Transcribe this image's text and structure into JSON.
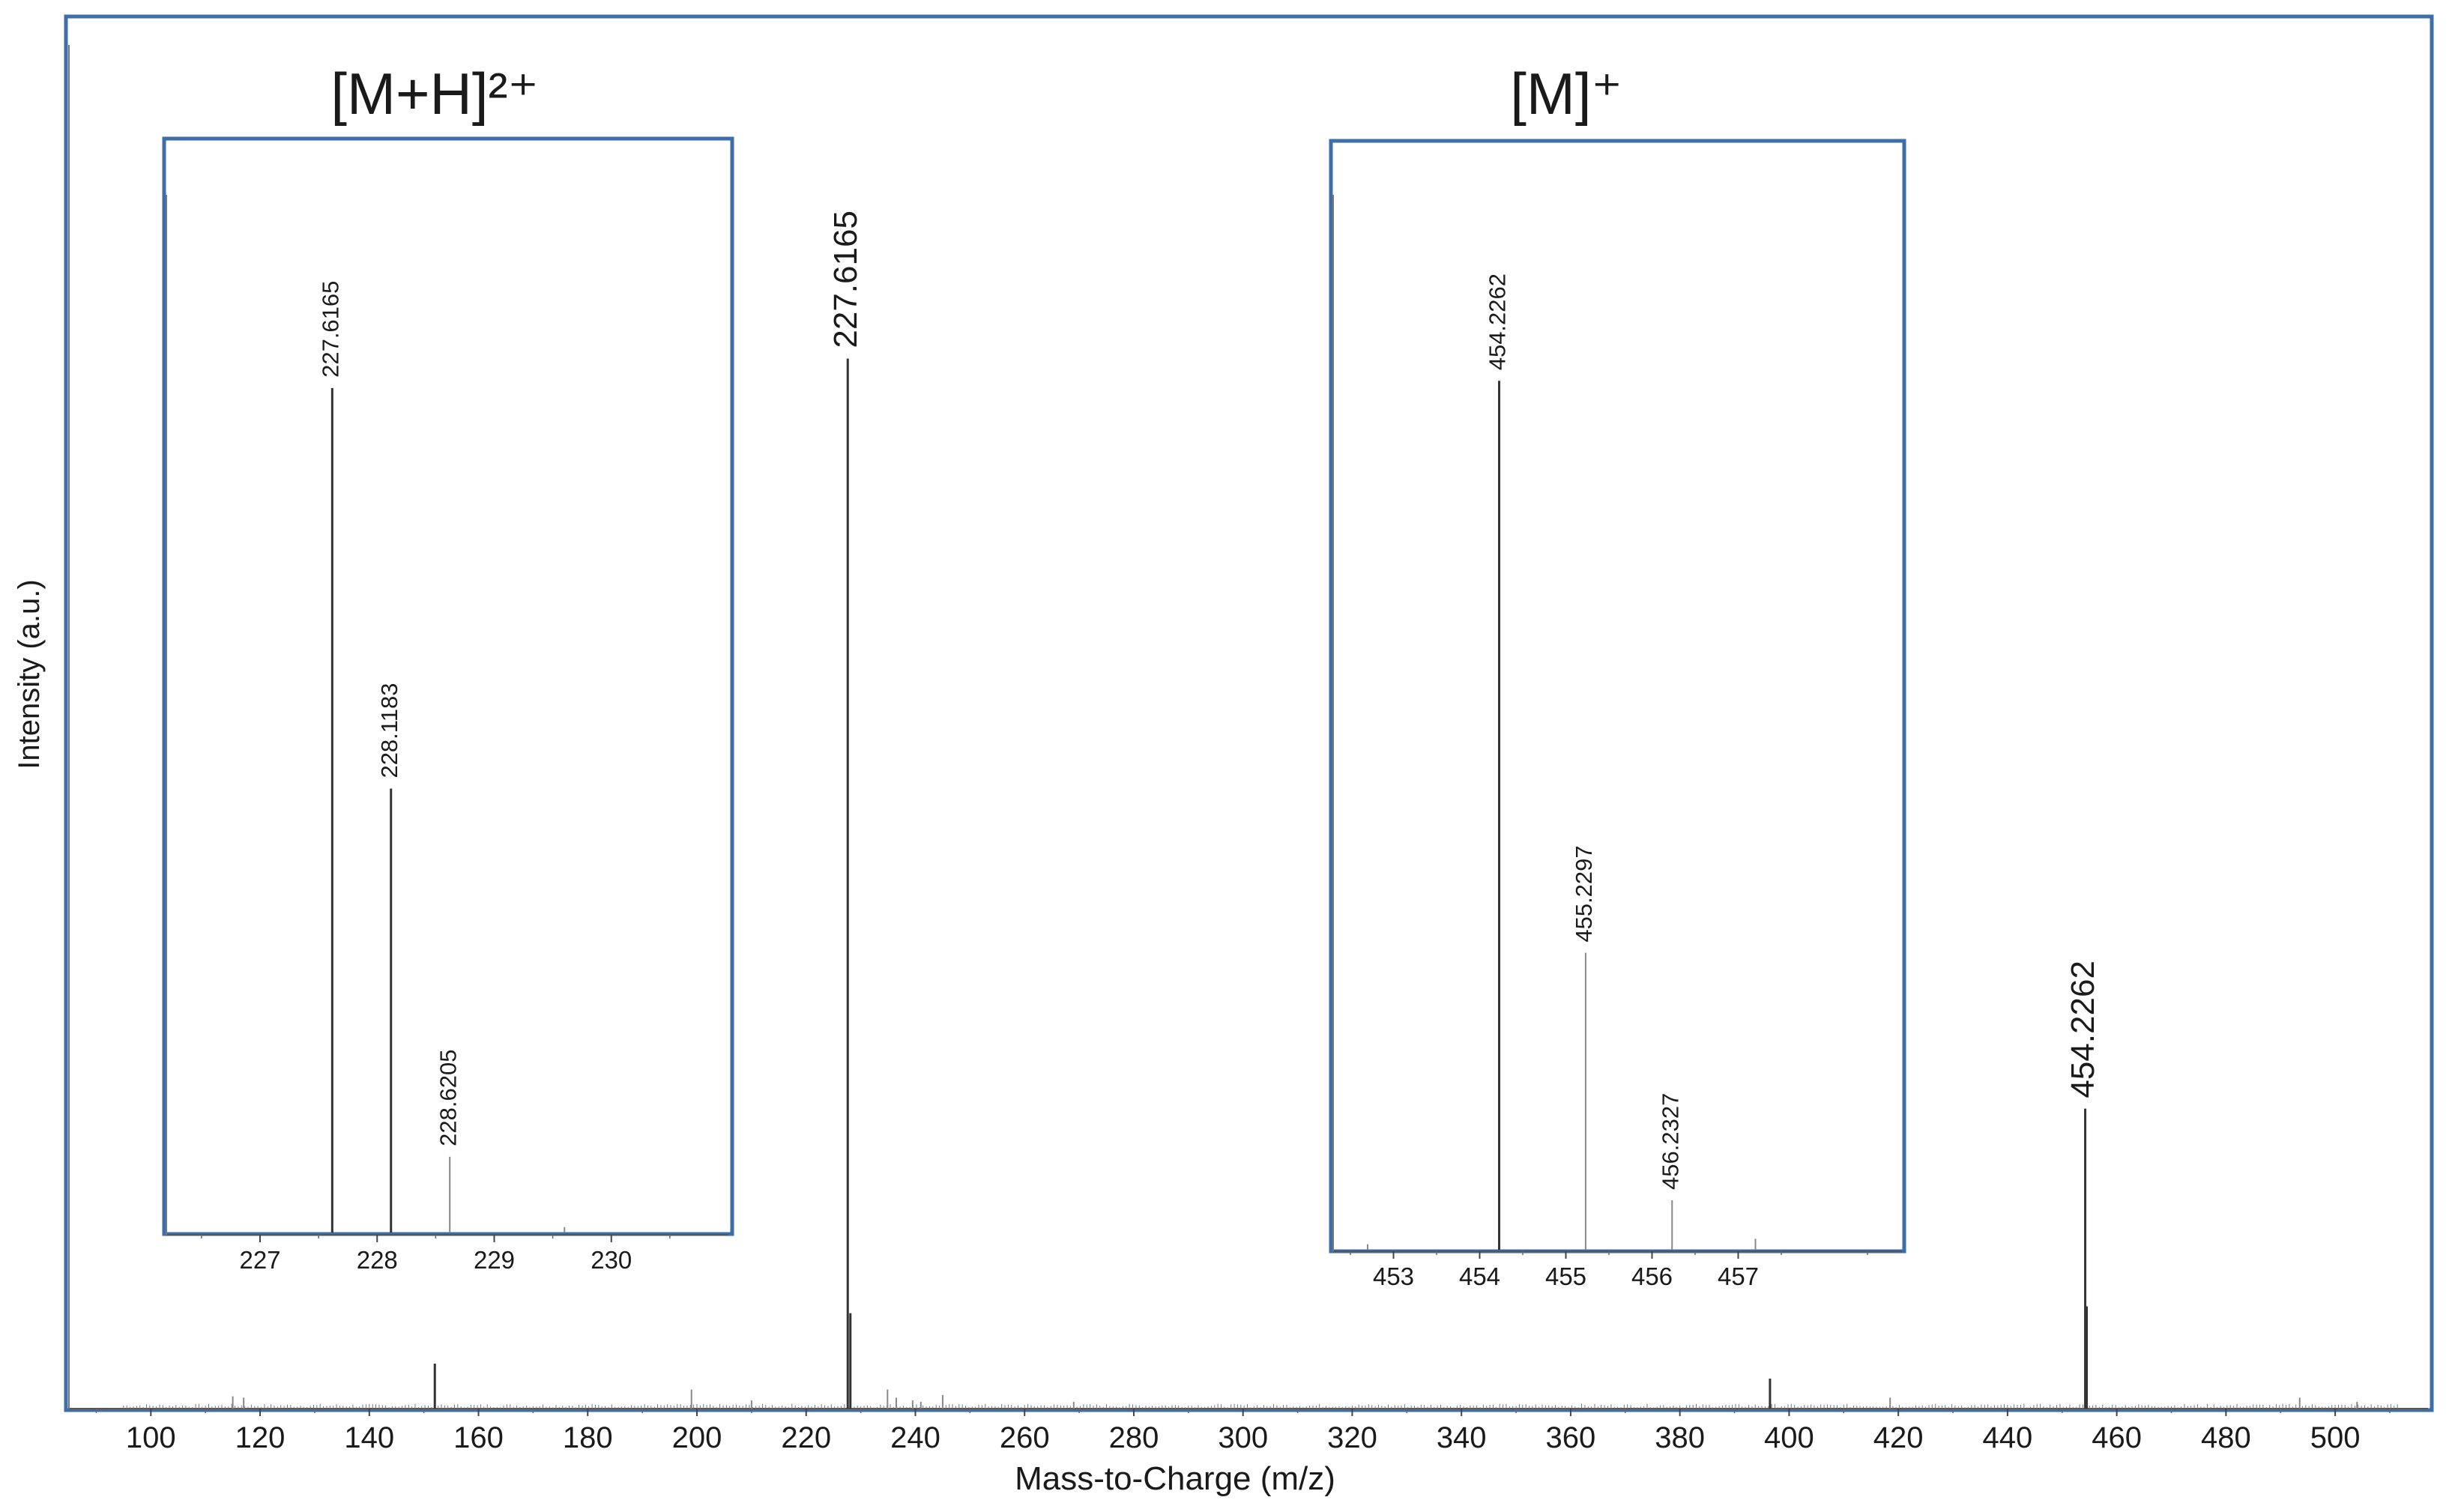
{
  "chart_data": [
    {
      "type": "bar",
      "xlabel": "Mass-to-Charge (m/z)",
      "ylabel": "Intensity (a.u.)",
      "xlim": [
        85,
        517
      ],
      "ylim": [
        0,
        100
      ],
      "xticks": [
        "100",
        "120",
        "140",
        "160",
        "180",
        "200",
        "220",
        "240",
        "260",
        "280",
        "300",
        "320",
        "340",
        "360",
        "380",
        "400",
        "420",
        "440",
        "460",
        "480",
        "500"
      ],
      "peaks": [
        {
          "x": 227.6165,
          "y": 77,
          "label": "227.6165"
        },
        {
          "x": 228.1,
          "y": 7,
          "label": ""
        },
        {
          "x": 454.2262,
          "y": 22,
          "label": "454.2262"
        },
        {
          "x": 454.5,
          "y": 7.5,
          "label": ""
        },
        {
          "x": 152.0,
          "y": 3.3,
          "label": ""
        },
        {
          "x": 396.5,
          "y": 2.2,
          "label": ""
        },
        {
          "x": 234.9,
          "y": 1.4,
          "label": ""
        },
        {
          "x": 199.0,
          "y": 1.4,
          "label": ""
        },
        {
          "x": 245.0,
          "y": 1.0,
          "label": ""
        },
        {
          "x": 115.0,
          "y": 0.9,
          "label": ""
        },
        {
          "x": 117.0,
          "y": 0.8,
          "label": ""
        },
        {
          "x": 210.0,
          "y": 0.6,
          "label": ""
        },
        {
          "x": 418.5,
          "y": 0.8,
          "label": ""
        },
        {
          "x": 493.5,
          "y": 0.8,
          "label": ""
        },
        {
          "x": 269.0,
          "y": 0.5,
          "label": ""
        },
        {
          "x": 236.5,
          "y": 0.8,
          "label": ""
        },
        {
          "x": 239.5,
          "y": 0.6,
          "label": ""
        },
        {
          "x": 241.0,
          "y": 0.5,
          "label": ""
        },
        {
          "x": 504.0,
          "y": 0.5,
          "label": ""
        }
      ]
    },
    {
      "type": "bar",
      "title": "[M+H]²⁺",
      "xlim": [
        226.2,
        231.0
      ],
      "ylim": [
        0,
        100
      ],
      "xticks": [
        "227",
        "228",
        "229",
        "230"
      ],
      "peaks": [
        {
          "x": 227.6165,
          "y": 78,
          "label": "227.6165"
        },
        {
          "x": 228.1183,
          "y": 41,
          "label": "228.1183"
        },
        {
          "x": 228.6205,
          "y": 7,
          "label": "228.6205"
        },
        {
          "x": 229.6,
          "y": 0.5,
          "label": ""
        }
      ]
    },
    {
      "type": "bar",
      "title": "[M]⁺",
      "xlim": [
        452.3,
        458.9
      ],
      "ylim": [
        0,
        100
      ],
      "xticks": [
        "453",
        "454",
        "455",
        "456",
        "457"
      ],
      "peaks": [
        {
          "x": 454.2262,
          "y": 79,
          "label": "454.2262"
        },
        {
          "x": 455.2297,
          "y": 27,
          "label": "455.2297"
        },
        {
          "x": 456.2327,
          "y": 4.5,
          "label": "456.2327"
        },
        {
          "x": 457.2,
          "y": 1.0,
          "label": ""
        },
        {
          "x": 452.7,
          "y": 0.5,
          "label": ""
        }
      ]
    }
  ]
}
